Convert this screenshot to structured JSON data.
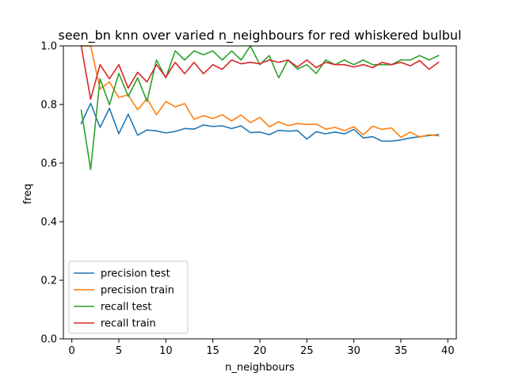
{
  "chart_data": {
    "type": "line",
    "title": "seen_bn knn over varied n_neighbours for red whiskered bulbul",
    "xlabel": "n_neighbours",
    "ylabel": "freq",
    "xlim": [
      -0.9,
      40.9
    ],
    "ylim": [
      0.0,
      1.0
    ],
    "xticks": [
      0,
      5,
      10,
      15,
      20,
      25,
      30,
      35,
      40
    ],
    "yticks": [
      0.0,
      0.2,
      0.4,
      0.6,
      0.8,
      1.0
    ],
    "xtick_labels": [
      "0",
      "5",
      "10",
      "15",
      "20",
      "25",
      "30",
      "35",
      "40"
    ],
    "ytick_labels": [
      "0.0",
      "0.2",
      "0.4",
      "0.6",
      "0.8",
      "1.0"
    ],
    "grid": false,
    "legend_position": "lower-left",
    "x": [
      1,
      2,
      3,
      4,
      5,
      6,
      7,
      8,
      9,
      10,
      11,
      12,
      13,
      14,
      15,
      16,
      17,
      18,
      19,
      20,
      21,
      22,
      23,
      24,
      25,
      26,
      27,
      28,
      29,
      30,
      31,
      32,
      33,
      34,
      35,
      36,
      37,
      38,
      39
    ],
    "series": [
      {
        "name": "precision test",
        "color": "#1f77b4",
        "values": [
          0.735,
          0.804,
          0.722,
          0.787,
          0.7,
          0.767,
          0.695,
          0.713,
          0.71,
          0.703,
          0.708,
          0.718,
          0.716,
          0.73,
          0.725,
          0.727,
          0.718,
          0.727,
          0.704,
          0.706,
          0.697,
          0.712,
          0.709,
          0.711,
          0.682,
          0.707,
          0.7,
          0.706,
          0.7,
          0.715,
          0.686,
          0.69,
          0.675,
          0.675,
          0.679,
          0.686,
          0.69,
          0.694,
          0.697
        ]
      },
      {
        "name": "precision train",
        "color": "#ff7f0e",
        "values": [
          1.0,
          1.0,
          0.853,
          0.877,
          0.824,
          0.833,
          0.782,
          0.82,
          0.765,
          0.81,
          0.792,
          0.803,
          0.749,
          0.762,
          0.752,
          0.765,
          0.744,
          0.764,
          0.738,
          0.756,
          0.724,
          0.741,
          0.728,
          0.735,
          0.732,
          0.733,
          0.716,
          0.722,
          0.711,
          0.724,
          0.697,
          0.726,
          0.715,
          0.72,
          0.688,
          0.706,
          0.689,
          0.697,
          0.693
        ]
      },
      {
        "name": "recall test",
        "color": "#2ca02c",
        "values": [
          0.781,
          0.578,
          0.888,
          0.799,
          0.906,
          0.828,
          0.891,
          0.811,
          0.952,
          0.891,
          0.983,
          0.952,
          0.983,
          0.97,
          0.983,
          0.952,
          0.983,
          0.952,
          1.0,
          0.936,
          0.967,
          0.891,
          0.952,
          0.921,
          0.936,
          0.906,
          0.952,
          0.936,
          0.952,
          0.936,
          0.952,
          0.936,
          0.936,
          0.936,
          0.952,
          0.952,
          0.967,
          0.952,
          0.967
        ]
      },
      {
        "name": "recall train",
        "color": "#d62728",
        "values": [
          1.0,
          0.818,
          0.936,
          0.888,
          0.936,
          0.856,
          0.91,
          0.877,
          0.936,
          0.893,
          0.944,
          0.905,
          0.944,
          0.905,
          0.936,
          0.92,
          0.952,
          0.939,
          0.944,
          0.939,
          0.952,
          0.944,
          0.952,
          0.928,
          0.952,
          0.926,
          0.944,
          0.936,
          0.936,
          0.928,
          0.936,
          0.926,
          0.944,
          0.936,
          0.944,
          0.932,
          0.95,
          0.92,
          0.944
        ]
      }
    ]
  }
}
